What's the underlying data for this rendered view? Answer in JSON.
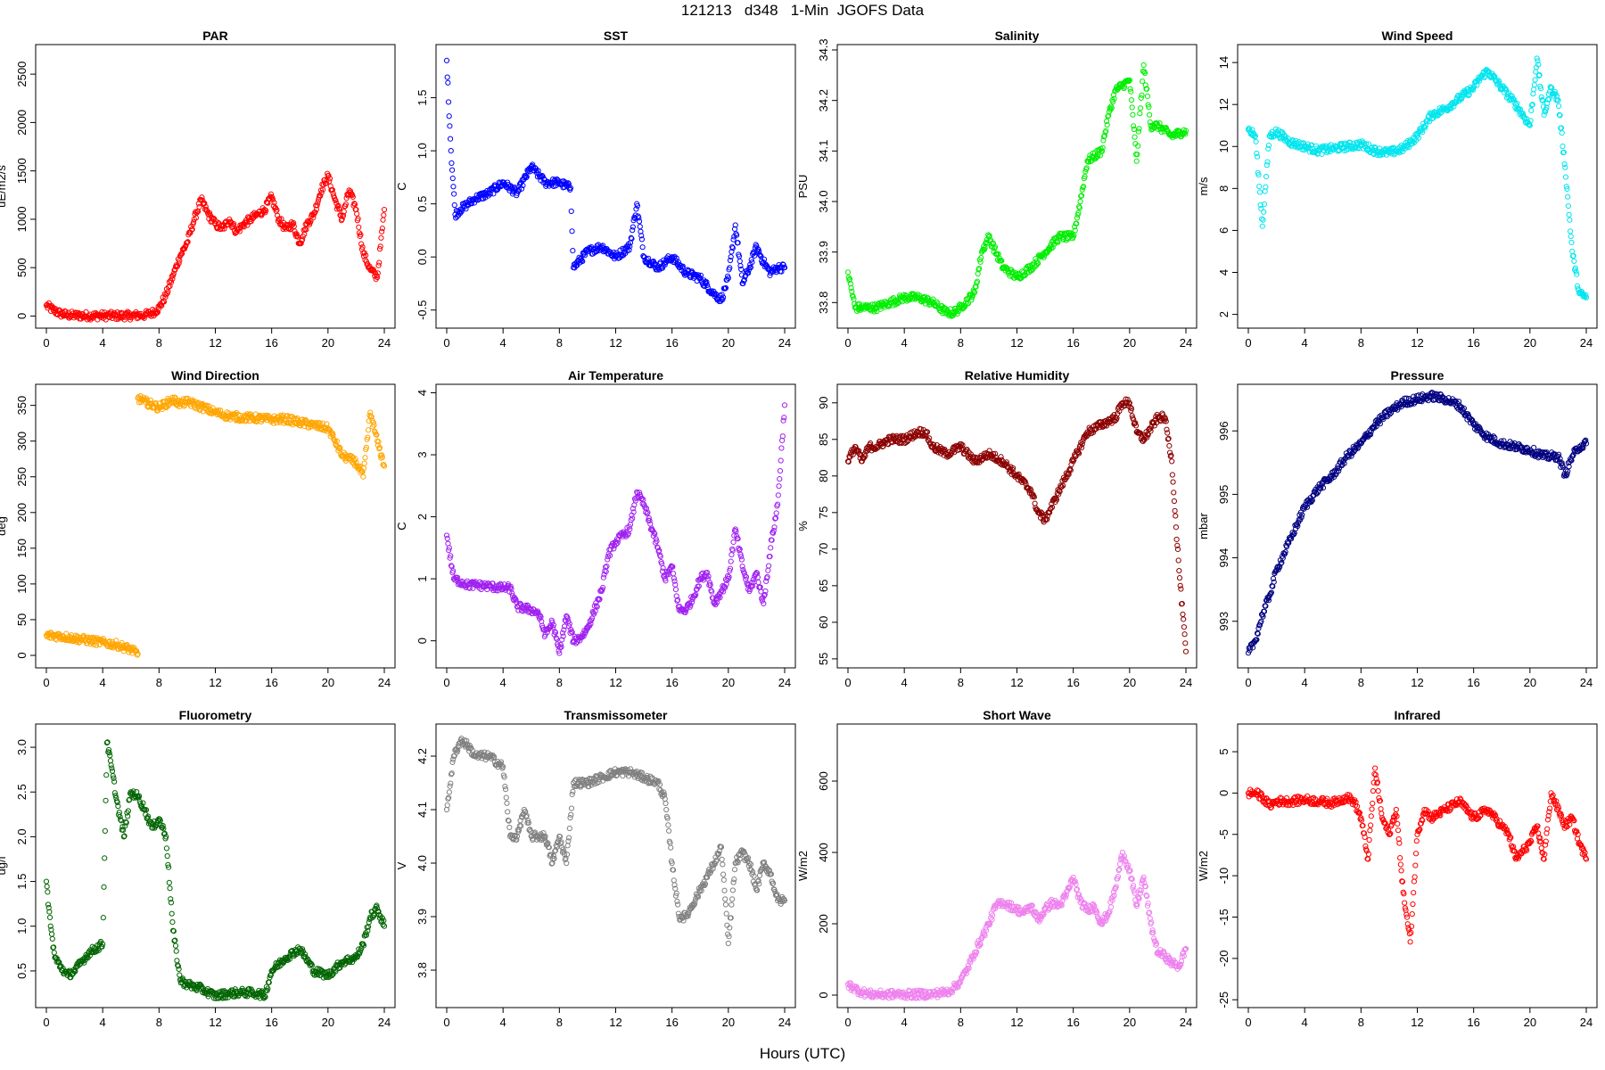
{
  "figure": {
    "title": "121213   d348   1-Min  JGOFS Data",
    "xlabel": "Hours (UTC)"
  },
  "chart_data": [
    {
      "type": "scatter",
      "title": "PAR",
      "ylabel": "uE/m2/s",
      "color": "#ff0000",
      "xlim": [
        0,
        24
      ],
      "ylim": [
        -70,
        2750
      ],
      "xticks": [
        0,
        4,
        8,
        12,
        16,
        20,
        24
      ],
      "yticks": [
        0,
        500,
        1000,
        1500,
        2000,
        2500
      ],
      "x": [
        0,
        0.5,
        1,
        1.5,
        2,
        3,
        4,
        5,
        6,
        7,
        7.5,
        8,
        8.5,
        9,
        9.5,
        10,
        10.5,
        11,
        11.5,
        12,
        12.5,
        13,
        13.5,
        14,
        14.5,
        15,
        15.5,
        16,
        16.5,
        17,
        17.5,
        18,
        18.5,
        19,
        19.5,
        20,
        20.5,
        21,
        21.5,
        22,
        22.5,
        23,
        23.5,
        24
      ],
      "y": [
        110,
        60,
        25,
        10,
        5,
        3,
        3,
        3,
        3,
        10,
        30,
        80,
        220,
        420,
        620,
        760,
        1000,
        1200,
        1050,
        950,
        900,
        1000,
        870,
        950,
        1000,
        1050,
        1100,
        1230,
        1000,
        900,
        950,
        750,
        950,
        1050,
        1300,
        1450,
        1200,
        1000,
        1300,
        1100,
        650,
        480,
        400,
        1100
      ]
    },
    {
      "type": "scatter",
      "title": "SST",
      "ylabel": "C",
      "color": "#0000ff",
      "xlim": [
        0,
        24
      ],
      "ylim": [
        -0.62,
        1.95
      ],
      "xticks": [
        0,
        4,
        8,
        12,
        16,
        20,
        24
      ],
      "yticks": [
        -0.5,
        0,
        0.5,
        1,
        1.5
      ],
      "x": [
        0,
        0.3,
        0.6,
        1,
        2,
        3,
        4,
        5,
        6,
        7,
        8,
        8.8,
        9,
        10,
        11,
        12,
        13,
        13.5,
        14,
        15,
        16,
        17,
        18,
        19,
        19.5,
        20,
        20.5,
        21,
        21.5,
        22,
        22.5,
        23,
        23.5,
        24
      ],
      "y": [
        1.85,
        1.0,
        0.4,
        0.45,
        0.55,
        0.6,
        0.7,
        0.6,
        0.85,
        0.7,
        0.7,
        0.65,
        -0.1,
        0.05,
        0.1,
        0.0,
        0.1,
        0.5,
        0.0,
        -0.1,
        0.0,
        -0.15,
        -0.2,
        -0.35,
        -0.4,
        -0.2,
        0.3,
        -0.25,
        -0.1,
        0.1,
        -0.05,
        -0.15,
        -0.1,
        -0.1
      ]
    },
    {
      "type": "scatter",
      "title": "Salinity",
      "ylabel": "PSU",
      "color": "#00ee00",
      "xlim": [
        0,
        24
      ],
      "ylim": [
        33.76,
        34.3
      ],
      "xticks": [
        0,
        4,
        8,
        12,
        16,
        20,
        24
      ],
      "yticks": [
        33.8,
        33.9,
        34.0,
        34.1,
        34.2,
        34.3
      ],
      "x": [
        0,
        0.5,
        1,
        2,
        3,
        4,
        5,
        6,
        7,
        7.5,
        8,
        9,
        9.5,
        10,
        11,
        12,
        13,
        14,
        15,
        16,
        16.5,
        17,
        18,
        18.5,
        19,
        20,
        20.5,
        21,
        21.5,
        22,
        23,
        24
      ],
      "y": [
        33.86,
        33.79,
        33.79,
        33.79,
        33.8,
        33.81,
        33.81,
        33.8,
        33.78,
        33.78,
        33.79,
        33.82,
        33.9,
        33.93,
        33.87,
        33.85,
        33.87,
        33.9,
        33.93,
        33.93,
        34.0,
        34.08,
        34.1,
        34.17,
        34.22,
        34.24,
        34.08,
        34.27,
        34.15,
        34.15,
        34.13,
        34.14
      ]
    },
    {
      "type": "scatter",
      "title": "Wind Speed",
      "ylabel": "m/s",
      "color": "#00e5ee",
      "xlim": [
        0,
        24
      ],
      "ylim": [
        1.6,
        14.6
      ],
      "xticks": [
        0,
        4,
        8,
        12,
        16,
        20,
        24
      ],
      "yticks": [
        2,
        4,
        6,
        8,
        10,
        12,
        14
      ],
      "x": [
        0,
        0.5,
        1,
        1.5,
        2,
        3,
        4,
        5,
        6,
        7,
        8,
        9,
        10,
        11,
        12,
        13,
        14,
        15,
        16,
        16.5,
        17,
        18,
        19,
        20,
        20.5,
        21,
        21.5,
        22,
        22.5,
        23,
        23.5,
        24
      ],
      "y": [
        10.8,
        10.5,
        6.2,
        10.5,
        10.7,
        10.2,
        10.0,
        9.8,
        9.9,
        10.0,
        10.1,
        9.8,
        9.7,
        9.9,
        10.5,
        11.5,
        11.8,
        12.3,
        12.8,
        13.3,
        13.6,
        12.8,
        12.0,
        11.0,
        14.2,
        11.5,
        12.8,
        12.2,
        9.0,
        5.0,
        3.0,
        2.8
      ]
    },
    {
      "type": "scatter",
      "title": "Wind Direction",
      "ylabel": "deg",
      "color": "#ffa500",
      "xlim": [
        0,
        24
      ],
      "ylim": [
        -10,
        372
      ],
      "xticks": [
        0,
        4,
        8,
        12,
        16,
        20,
        24
      ],
      "yticks": [
        0,
        50,
        100,
        150,
        200,
        250,
        300,
        350
      ],
      "x": [
        0,
        1,
        2,
        3,
        4,
        5,
        6,
        6.5,
        6.5,
        7,
        8,
        9,
        9.5,
        10,
        11,
        12,
        13,
        14,
        15,
        16,
        17,
        18,
        19,
        20,
        20.5,
        21,
        21.5,
        22,
        22.5,
        23,
        23.5,
        24
      ],
      "y": [
        28,
        27,
        24,
        21,
        18,
        15,
        8,
        2,
        360,
        355,
        347,
        358,
        352,
        355,
        348,
        340,
        335,
        333,
        332,
        330,
        331,
        326,
        322,
        318,
        300,
        280,
        275,
        270,
        250,
        340,
        300,
        265
      ]
    },
    {
      "type": "scatter",
      "title": "Air Temperature",
      "ylabel": "C",
      "color": "#a020f0",
      "xlim": [
        0,
        24
      ],
      "ylim": [
        -0.35,
        4.05
      ],
      "xticks": [
        0,
        4,
        8,
        12,
        16,
        20,
        24
      ],
      "yticks": [
        0,
        1,
        2,
        3,
        4
      ],
      "x": [
        0,
        0.5,
        1,
        1.5,
        2,
        3,
        4,
        4.5,
        5,
        6,
        6.5,
        7,
        7.5,
        8,
        8.5,
        9,
        9.5,
        10,
        11,
        11.5,
        12,
        13,
        13.5,
        14,
        15,
        15.5,
        16,
        16.5,
        17,
        17.5,
        18,
        18.5,
        19,
        20,
        20.5,
        21,
        21.5,
        22,
        22.5,
        23,
        23.5,
        24
      ],
      "y": [
        1.7,
        1.0,
        0.95,
        0.9,
        0.9,
        0.88,
        0.85,
        0.85,
        0.55,
        0.5,
        0.45,
        0.1,
        0.3,
        -0.2,
        0.4,
        0.0,
        0.05,
        0.2,
        0.8,
        1.4,
        1.6,
        1.8,
        2.4,
        2.2,
        1.5,
        1.0,
        1.2,
        0.5,
        0.5,
        0.7,
        1.0,
        1.1,
        0.6,
        1.0,
        1.8,
        1.2,
        0.8,
        1.1,
        0.6,
        1.5,
        2.2,
        3.8
      ]
    },
    {
      "type": "scatter",
      "title": "Relative Humidity",
      "ylabel": "%",
      "color": "#8b0000",
      "xlim": [
        0,
        24
      ],
      "ylim": [
        54.5,
        91.8
      ],
      "xticks": [
        0,
        4,
        8,
        12,
        16,
        20,
        24
      ],
      "yticks": [
        55,
        60,
        65,
        70,
        75,
        80,
        85,
        90
      ],
      "x": [
        0,
        0.5,
        1,
        1.5,
        2,
        3,
        4,
        5,
        5.5,
        6,
        7,
        8,
        9,
        10,
        11,
        12,
        13,
        13.5,
        14,
        15,
        16,
        17,
        18,
        19,
        19.5,
        20,
        20.5,
        21,
        22,
        22.5,
        23,
        23.3,
        23.6,
        24
      ],
      "y": [
        82,
        84,
        82,
        84,
        84,
        85,
        85,
        86,
        86,
        84,
        83,
        84,
        82,
        83,
        82,
        80,
        78,
        75,
        74,
        78,
        82,
        86,
        87,
        88,
        90,
        90,
        86,
        85,
        88,
        88,
        82,
        73,
        65,
        56
      ]
    },
    {
      "type": "scatter",
      "title": "Pressure",
      "ylabel": "mbar",
      "color": "#000080",
      "xlim": [
        0,
        24
      ],
      "ylim": [
        992.35,
        996.65
      ],
      "xticks": [
        0,
        4,
        8,
        12,
        16,
        20,
        24
      ],
      "yticks": [
        993,
        994,
        995,
        996
      ],
      "x": [
        0,
        0.5,
        1,
        1.5,
        2,
        3,
        4,
        5,
        6,
        7,
        8,
        9,
        10,
        11,
        12,
        13,
        14,
        15,
        16,
        17,
        18,
        19,
        20,
        21,
        22,
        22.5,
        23,
        23.5,
        24
      ],
      "y": [
        992.5,
        992.7,
        993.1,
        993.4,
        993.8,
        994.3,
        994.8,
        995.1,
        995.3,
        995.6,
        995.8,
        996.1,
        996.3,
        996.45,
        996.5,
        996.55,
        996.5,
        996.4,
        996.1,
        995.9,
        995.8,
        995.75,
        995.7,
        995.6,
        995.6,
        995.3,
        995.6,
        995.75,
        995.8
      ]
    },
    {
      "type": "scatter",
      "title": "Fluorometry",
      "ylabel": "ug/l",
      "color": "#006400",
      "xlim": [
        0,
        24
      ],
      "ylim": [
        0.15,
        3.2
      ],
      "xticks": [
        0,
        4,
        8,
        12,
        16,
        20,
        24
      ],
      "yticks": [
        0.5,
        1.0,
        1.5,
        2.0,
        2.5,
        3.0
      ],
      "x": [
        0,
        0.3,
        0.6,
        1,
        1.5,
        2,
        3,
        3.5,
        4,
        4.3,
        4.6,
        5,
        5.5,
        6,
        6.5,
        7,
        7.5,
        8,
        8.5,
        9,
        9.5,
        10,
        11,
        12,
        13,
        14,
        15,
        15.5,
        16,
        17,
        18,
        19,
        20,
        21,
        22,
        22.5,
        23,
        23.5,
        24
      ],
      "y": [
        1.5,
        1.0,
        0.65,
        0.55,
        0.45,
        0.5,
        0.7,
        0.75,
        0.8,
        3.05,
        2.8,
        2.4,
        2.0,
        2.5,
        2.45,
        2.3,
        2.1,
        2.2,
        2.0,
        0.95,
        0.4,
        0.35,
        0.3,
        0.22,
        0.25,
        0.26,
        0.25,
        0.22,
        0.5,
        0.65,
        0.75,
        0.5,
        0.45,
        0.6,
        0.65,
        0.8,
        1.1,
        1.2,
        1.0
      ]
    },
    {
      "type": "scatter",
      "title": "Transmissometer",
      "ylabel": "V",
      "color": "#808080",
      "xlim": [
        0,
        24
      ],
      "ylim": [
        3.74,
        4.25
      ],
      "xticks": [
        0,
        4,
        8,
        12,
        16,
        20,
        24
      ],
      "yticks": [
        3.8,
        3.9,
        4.0,
        4.1,
        4.2
      ],
      "x": [
        0,
        0.5,
        1,
        1.5,
        2,
        3,
        4,
        4.5,
        5,
        5.5,
        6,
        7,
        7.5,
        8,
        8.5,
        9,
        10,
        11,
        12,
        13,
        14,
        15,
        15.5,
        16,
        16.5,
        17,
        18,
        19,
        19.5,
        20,
        20.5,
        21,
        21.5,
        22,
        22.5,
        23,
        23.5,
        24
      ],
      "y": [
        4.1,
        4.2,
        4.23,
        4.22,
        4.2,
        4.2,
        4.18,
        4.05,
        4.05,
        4.1,
        4.05,
        4.05,
        4.0,
        4.05,
        4.0,
        4.15,
        4.15,
        4.16,
        4.17,
        4.17,
        4.16,
        4.15,
        4.12,
        4.0,
        3.9,
        3.9,
        3.95,
        4.0,
        4.03,
        3.85,
        4.0,
        4.02,
        4.0,
        3.95,
        4.0,
        3.98,
        3.93,
        3.93
      ]
    },
    {
      "type": "scatter",
      "title": "Short Wave",
      "ylabel": "W/m2",
      "color": "#ee82ee",
      "xlim": [
        0,
        24
      ],
      "ylim": [
        -20,
        745
      ],
      "xticks": [
        0,
        4,
        8,
        12,
        16,
        20,
        24
      ],
      "yticks": [
        0,
        200,
        400,
        600
      ],
      "x": [
        0,
        0.5,
        1,
        1.5,
        2,
        3,
        4,
        5,
        6,
        7,
        7.5,
        8,
        8.5,
        9,
        9.5,
        10,
        10.5,
        11,
        11.5,
        12,
        12.5,
        13,
        13.5,
        14,
        14.5,
        15,
        15.5,
        16,
        16.5,
        17,
        17.5,
        18,
        18.5,
        19,
        19.5,
        20,
        20.5,
        21,
        21.5,
        22,
        22.5,
        23,
        23.5,
        24
      ],
      "y": [
        30,
        18,
        8,
        3,
        2,
        2,
        2,
        2,
        3,
        8,
        20,
        40,
        75,
        120,
        160,
        200,
        250,
        260,
        250,
        240,
        230,
        250,
        210,
        240,
        260,
        250,
        280,
        330,
        260,
        240,
        250,
        200,
        230,
        300,
        400,
        350,
        250,
        330,
        200,
        120,
        110,
        90,
        80,
        130
      ]
    },
    {
      "type": "scatter",
      "title": "Infrared",
      "ylabel": "W/m2",
      "color": "#ff0000",
      "xlim": [
        0,
        24
      ],
      "ylim": [
        -25.3,
        7.7
      ],
      "xticks": [
        0,
        4,
        8,
        12,
        16,
        20,
        24
      ],
      "yticks": [
        -25,
        -20,
        -15,
        -10,
        -5,
        0,
        5
      ],
      "x": [
        0,
        0.5,
        1,
        1.5,
        2,
        3,
        4,
        5,
        6,
        7,
        7.5,
        8,
        8.5,
        9,
        9.5,
        10,
        10.5,
        11,
        11.5,
        12,
        12.5,
        13,
        14,
        15,
        16,
        17,
        18,
        18.5,
        19,
        19.5,
        20,
        20.5,
        21,
        21.5,
        22,
        22.5,
        23,
        23.5,
        24
      ],
      "y": [
        0,
        0,
        -0.5,
        -1.5,
        -1,
        -1,
        -0.8,
        -1,
        -1.2,
        -0.5,
        -1,
        -3,
        -8,
        3,
        -3,
        -5,
        -2,
        -12,
        -18,
        -5,
        -2,
        -3,
        -2,
        -1,
        -3,
        -2,
        -4,
        -5,
        -8,
        -7,
        -6,
        -4,
        -8,
        0,
        -2,
        -4,
        -3,
        -6,
        -8
      ]
    }
  ]
}
